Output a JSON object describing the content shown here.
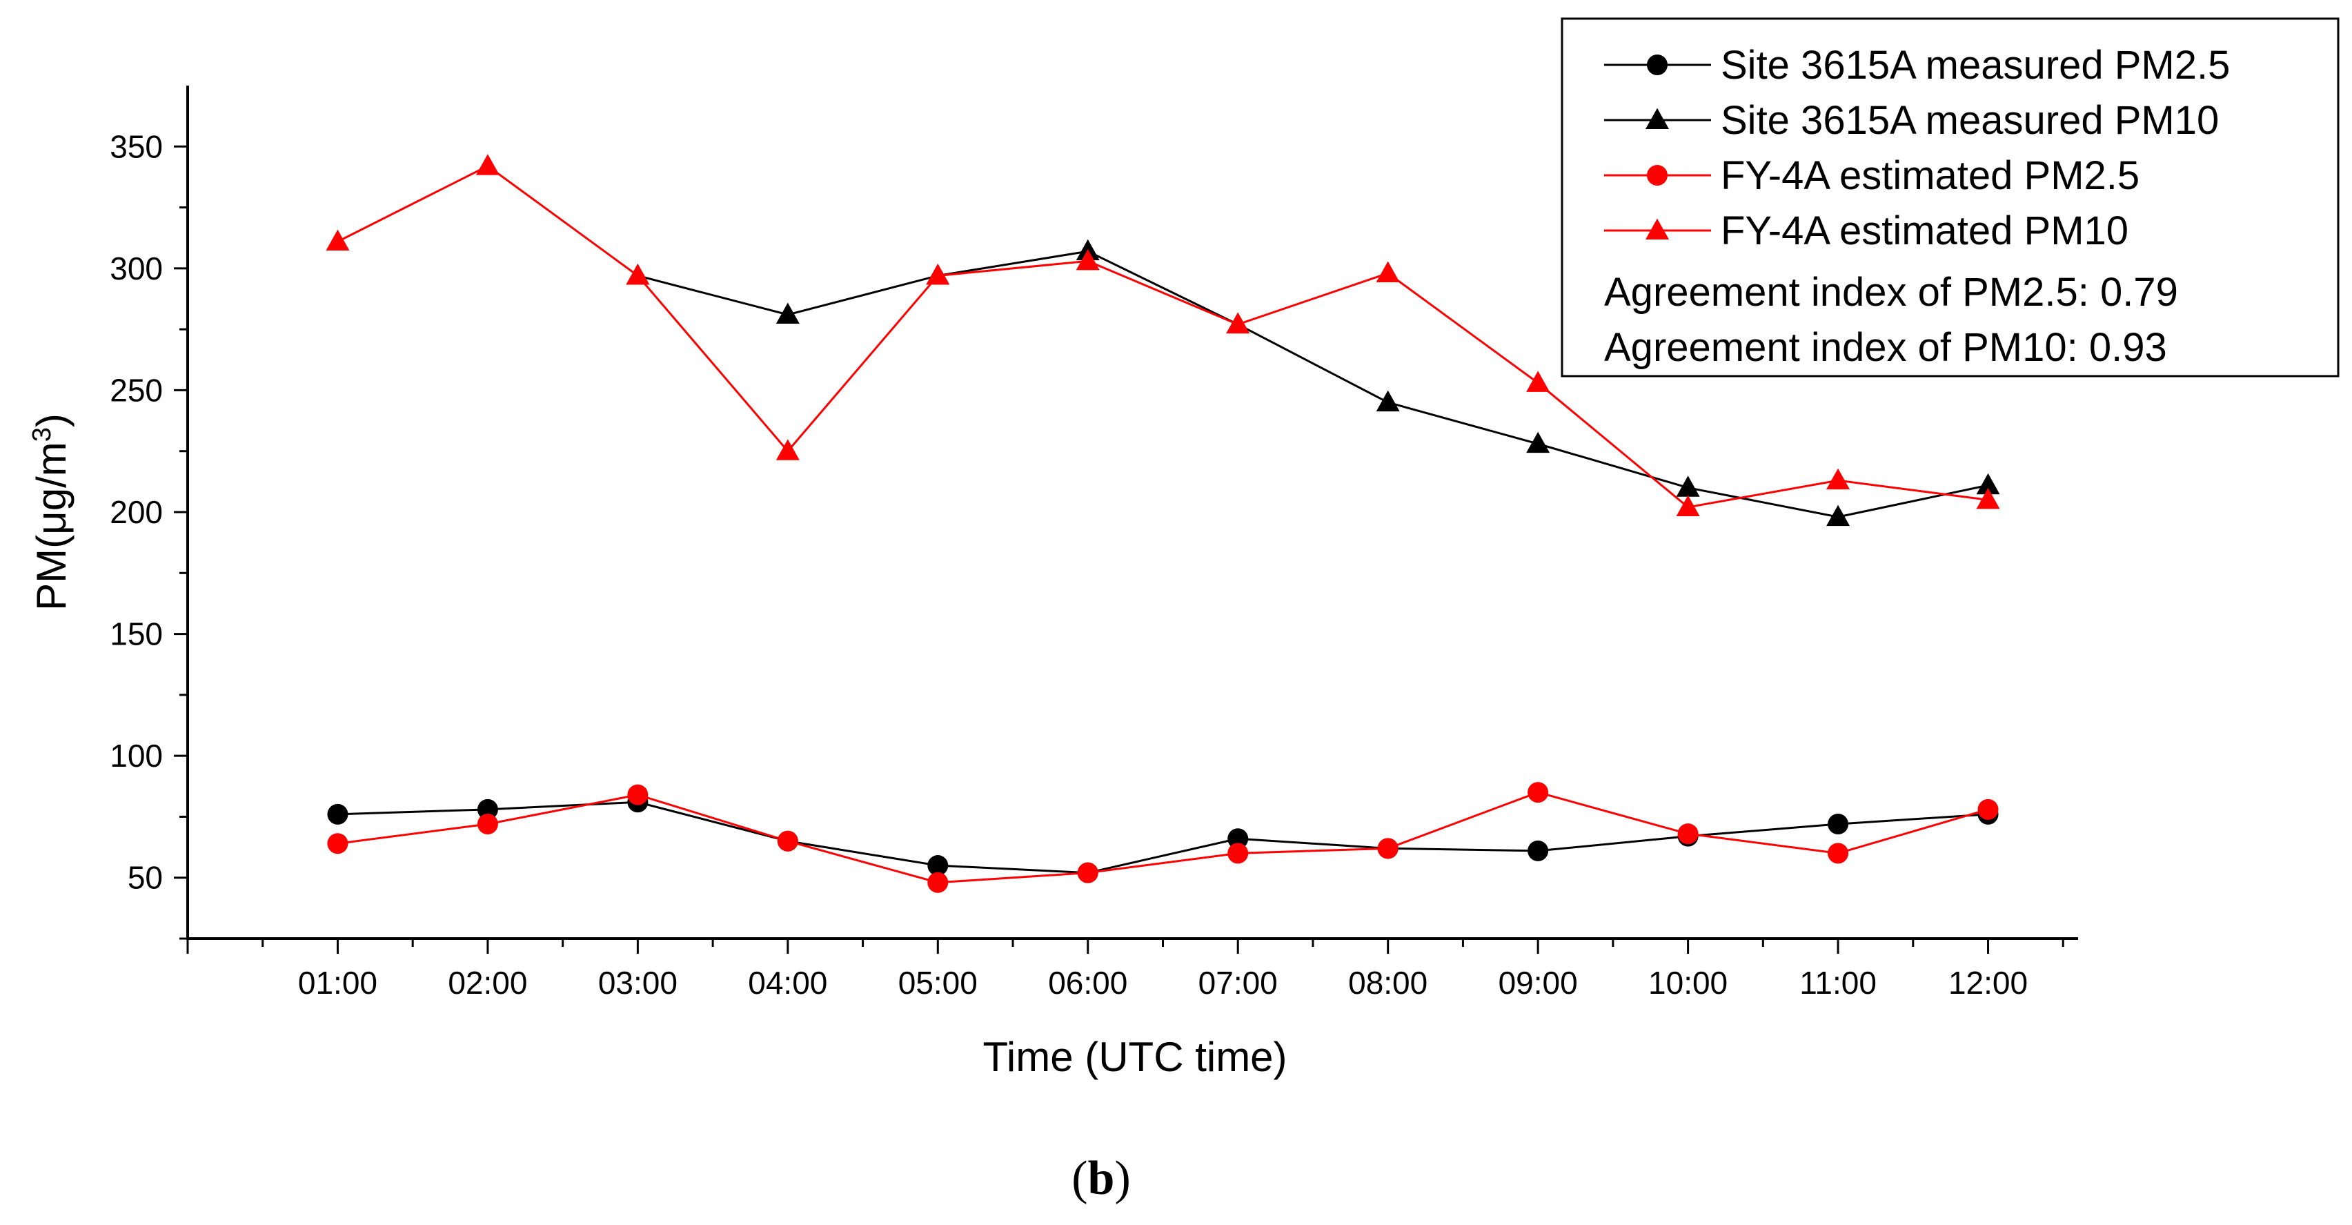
{
  "chart_data": {
    "type": "line",
    "title": "",
    "xlabel": "Time (UTC time)",
    "ylabel": "PM(μg/m³)",
    "ylabel_main": "PM(μg/m",
    "ylabel_sup": "3",
    "ylabel_close": ")",
    "categories": [
      "01:00",
      "02:00",
      "03:00",
      "04:00",
      "05:00",
      "06:00",
      "07:00",
      "08:00",
      "09:00",
      "10:00",
      "11:00",
      "12:00"
    ],
    "x_range": [
      0,
      12.6
    ],
    "ylim": [
      25,
      375
    ],
    "yticks": [
      50,
      100,
      150,
      200,
      250,
      300,
      350
    ],
    "grid": false,
    "legend_position": "top-right",
    "series": [
      {
        "name": "Site 3615A measured PM2.5",
        "color": "#000000",
        "marker": "circle",
        "x": [
          1,
          2,
          3,
          4,
          5,
          6,
          7,
          8,
          9,
          10,
          11,
          12
        ],
        "values": [
          76,
          78,
          81,
          65,
          55,
          52,
          66,
          62,
          61,
          67,
          72,
          76
        ]
      },
      {
        "name": "Site 3615A measured PM10",
        "color": "#000000",
        "marker": "triangle",
        "x": [
          3,
          4,
          5,
          6,
          7,
          8,
          9,
          10,
          11,
          12
        ],
        "values": [
          297,
          281,
          297,
          307,
          277,
          245,
          228,
          210,
          198,
          211
        ]
      },
      {
        "name": "FY-4A estimated PM2.5",
        "color": "#ff0000",
        "marker": "circle",
        "x": [
          1,
          2,
          3,
          4,
          5,
          6,
          7,
          8,
          9,
          10,
          11,
          12
        ],
        "values": [
          64,
          72,
          84,
          65,
          48,
          52,
          60,
          62,
          85,
          68,
          60,
          78
        ]
      },
      {
        "name": "FY-4A estimated PM10",
        "color": "#ff0000",
        "marker": "triangle",
        "x": [
          1,
          2,
          3,
          4,
          5,
          6,
          7,
          8,
          9,
          10,
          11,
          12
        ],
        "values": [
          311,
          342,
          297,
          225,
          297,
          303,
          277,
          298,
          253,
          202,
          213,
          205
        ]
      }
    ],
    "annotations": [
      "Agreement index of PM2.5: 0.79",
      "Agreement index of PM10: 0.93"
    ],
    "caption": "(b)",
    "caption_letter": "b"
  }
}
